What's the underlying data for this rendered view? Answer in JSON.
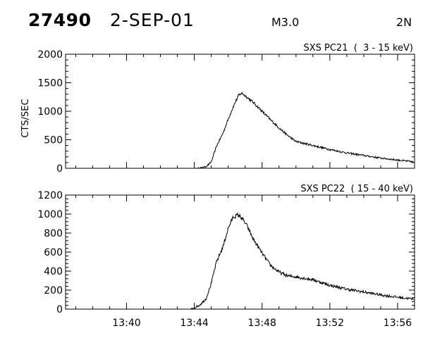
{
  "header": {
    "event_id": "27490",
    "date": "2-SEP-01",
    "flare_class": "M3.0",
    "region": "2N"
  },
  "chart_data": [
    {
      "type": "line",
      "title": "SXS PC21  (  3 - 15 keV)",
      "ylabel": "CTS/SEC",
      "xlabel": "",
      "x_ticks": [
        "13:40",
        "13:44",
        "13:48",
        "13:52",
        "13:56"
      ],
      "x_range_hhmm": [
        "13:36.4",
        "13:57.0"
      ],
      "ylim": [
        0,
        2000
      ],
      "y_ticks": [
        0,
        500,
        1000,
        1500,
        2000
      ],
      "series": [
        {
          "x_hhmm": [
            "13:44.2",
            "13:44.7",
            "13:45.0",
            "13:45.3",
            "13:45.7",
            "13:46.0",
            "13:46.3",
            "13:46.6",
            "13:46.8",
            "13:47.1",
            "13:47.5",
            "13:48.0",
            "13:48.5",
            "13:49.0",
            "13:49.5",
            "13:50.0",
            "13:51.0",
            "13:52.0",
            "13:53.0",
            "13:54.0",
            "13:55.0",
            "13:56.0",
            "13:57.0"
          ],
          "values": [
            0,
            30,
            110,
            380,
            620,
            860,
            1080,
            1270,
            1320,
            1250,
            1150,
            1000,
            850,
            710,
            580,
            470,
            400,
            330,
            270,
            225,
            180,
            145,
            110
          ]
        }
      ]
    },
    {
      "type": "line",
      "title": "SXS PC22  ( 15 - 40 keV)",
      "ylabel": "",
      "xlabel": "",
      "x_ticks": [
        "13:40",
        "13:44",
        "13:48",
        "13:52",
        "13:56"
      ],
      "x_range_hhmm": [
        "13:36.4",
        "13:57.0"
      ],
      "ylim": [
        0,
        1200
      ],
      "y_ticks": [
        0,
        200,
        400,
        600,
        800,
        1000,
        1200
      ],
      "series": [
        {
          "x_hhmm": [
            "13:43.8",
            "13:44.3",
            "13:44.7",
            "13:45.0",
            "13:45.3",
            "13:45.7",
            "13:46.0",
            "13:46.3",
            "13:46.6",
            "13:46.8",
            "13:47.1",
            "13:47.5",
            "13:48.0",
            "13:48.5",
            "13:49.0",
            "13:49.5",
            "13:50.0",
            "13:51.0",
            "13:52.0",
            "13:53.0",
            "13:54.0",
            "13:55.0",
            "13:56.0",
            "13:57.0"
          ],
          "values": [
            0,
            40,
            110,
            270,
            490,
            660,
            850,
            970,
            990,
            960,
            880,
            730,
            590,
            460,
            390,
            350,
            340,
            310,
            250,
            210,
            180,
            150,
            125,
            105
          ]
        }
      ]
    }
  ]
}
